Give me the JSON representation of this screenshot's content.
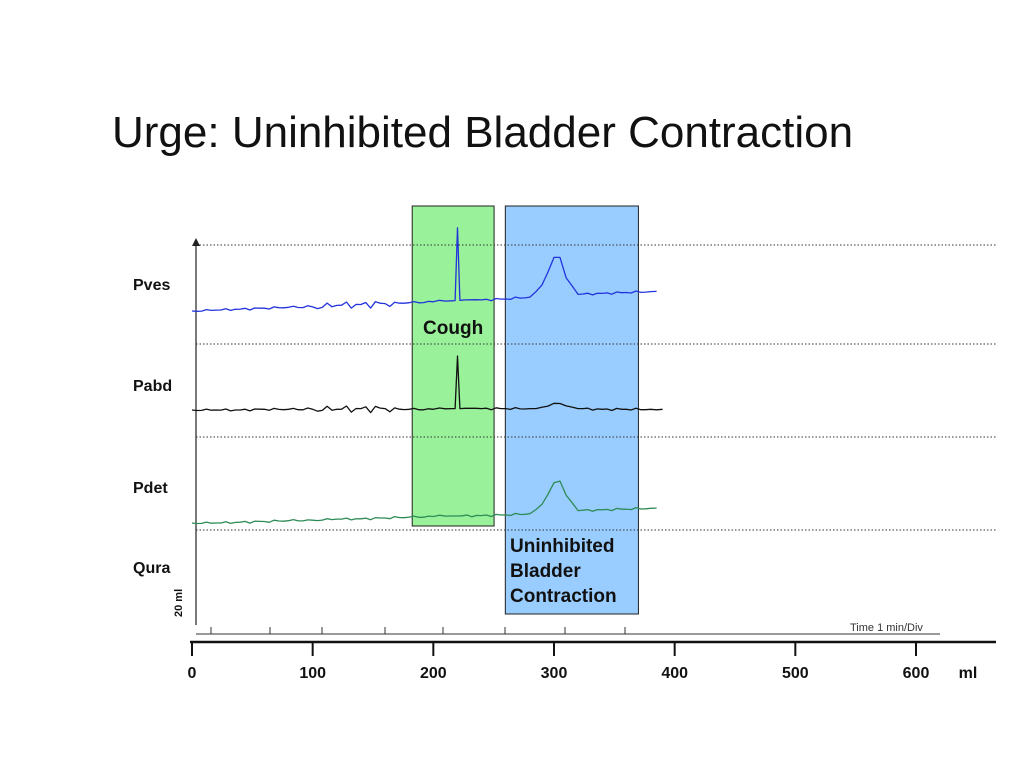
{
  "title": "Urge: Uninhibited Bladder Contraction",
  "colors": {
    "pves": "#2233dd",
    "pabd": "#111111",
    "pdet": "#2e8b57",
    "cough_box": "#99f299",
    "contraction_box": "#99ccff"
  },
  "chart_data": {
    "type": "line",
    "title": "Urge: Uninhibited Bladder Contraction",
    "xlabel": "ml",
    "xlim": [
      0,
      680
    ],
    "x_ticks": [
      "0",
      "100",
      "200",
      "300",
      "400",
      "500",
      "600"
    ],
    "x_tick_values": [
      0,
      100,
      200,
      300,
      400,
      500,
      600
    ],
    "channels": [
      "Pves",
      "Pabd",
      "Pdet",
      "Qura"
    ],
    "scale_label": "20 ml",
    "time_label": "Time 1 min/Div",
    "grid": "dotted horizontal channel separators",
    "series": [
      {
        "name": "Pves",
        "points": [
          [
            0,
            0
          ],
          [
            20,
            0.5
          ],
          [
            40,
            1
          ],
          [
            60,
            1.5
          ],
          [
            80,
            2
          ],
          [
            100,
            2.2
          ],
          [
            120,
            3
          ],
          [
            140,
            3.5
          ],
          [
            160,
            4
          ],
          [
            180,
            4.5
          ],
          [
            200,
            5
          ],
          [
            215,
            5.5
          ],
          [
            218,
            5.6
          ],
          [
            220,
            45
          ],
          [
            222,
            5.8
          ],
          [
            240,
            6
          ],
          [
            260,
            6.5
          ],
          [
            280,
            7.5
          ],
          [
            290,
            14
          ],
          [
            300,
            29
          ],
          [
            305,
            29
          ],
          [
            310,
            18
          ],
          [
            320,
            9
          ],
          [
            340,
            9.5
          ],
          [
            360,
            10
          ],
          [
            380,
            10.5
          ],
          [
            385,
            10.6
          ]
        ]
      },
      {
        "name": "Pabd",
        "points": [
          [
            0,
            0
          ],
          [
            20,
            0
          ],
          [
            40,
            0
          ],
          [
            60,
            0.5
          ],
          [
            80,
            0.5
          ],
          [
            100,
            0.5
          ],
          [
            120,
            0.5
          ],
          [
            140,
            1
          ],
          [
            160,
            1
          ],
          [
            180,
            0.5
          ],
          [
            200,
            0.5
          ],
          [
            215,
            1
          ],
          [
            218,
            1
          ],
          [
            220,
            40
          ],
          [
            222,
            1
          ],
          [
            240,
            1
          ],
          [
            260,
            1
          ],
          [
            280,
            1
          ],
          [
            290,
            2
          ],
          [
            300,
            5
          ],
          [
            310,
            3
          ],
          [
            320,
            1
          ],
          [
            340,
            0.5
          ],
          [
            360,
            0.5
          ],
          [
            380,
            0.5
          ],
          [
            390,
            0.5
          ]
        ]
      },
      {
        "name": "Pdet",
        "points": [
          [
            0,
            0
          ],
          [
            20,
            0
          ],
          [
            40,
            0.5
          ],
          [
            60,
            1
          ],
          [
            80,
            1.5
          ],
          [
            100,
            1.8
          ],
          [
            120,
            2.5
          ],
          [
            140,
            2.7
          ],
          [
            160,
            3.2
          ],
          [
            180,
            3.8
          ],
          [
            200,
            4.2
          ],
          [
            215,
            4.5
          ],
          [
            220,
            4.5
          ],
          [
            240,
            4.8
          ],
          [
            260,
            5.2
          ],
          [
            280,
            6
          ],
          [
            290,
            12
          ],
          [
            300,
            26
          ],
          [
            305,
            27
          ],
          [
            310,
            18
          ],
          [
            320,
            8
          ],
          [
            340,
            8.5
          ],
          [
            360,
            9
          ],
          [
            380,
            9.5
          ],
          [
            385,
            9.6
          ]
        ]
      }
    ],
    "annotations": [
      {
        "label": "Cough",
        "x_range": [
          180,
          252
        ],
        "channels": [
          "Pves",
          "Pabd",
          "Pdet"
        ]
      },
      {
        "label_lines": [
          "Uninhibited",
          "Bladder",
          "Contraction"
        ],
        "x_range": [
          258,
          365
        ],
        "channels": [
          "Pves",
          "Pabd",
          "Pdet",
          "Qura"
        ]
      }
    ]
  }
}
